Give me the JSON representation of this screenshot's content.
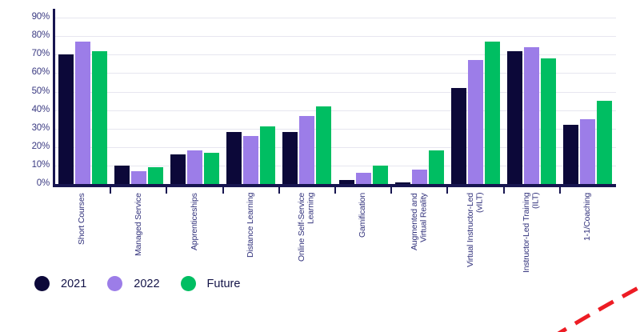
{
  "chart_data": {
    "type": "bar",
    "title": "",
    "xlabel": "",
    "ylabel": "",
    "ylim": [
      0,
      90
    ],
    "yticks": [
      "0%",
      "10%",
      "20%",
      "30%",
      "40%",
      "50%",
      "60%",
      "70%",
      "80%",
      "90%"
    ],
    "grid": true,
    "legend_position": "bottom-left",
    "categories": [
      "Short Courses",
      "Managed Service",
      "Apprenticeships",
      "Distance Learning",
      "Online Self-Service\nLearning",
      "Gamification",
      "Augmented and\nVirtual Reality",
      "Virtual Instructor-Led\n(vILT)",
      "Instructor-Led Training\n(ILT)",
      "1-1/Coaching"
    ],
    "series": [
      {
        "name": "2021",
        "color": "#0c0839",
        "values": [
          70,
          10,
          16,
          28,
          28,
          2,
          1,
          52,
          72,
          32
        ]
      },
      {
        "name": "2022",
        "color": "#9c7de8",
        "values": [
          77,
          7,
          18,
          26,
          37,
          6,
          8,
          67,
          74,
          35
        ]
      },
      {
        "name": "Future",
        "color": "#00be62",
        "values": [
          72,
          9,
          17,
          31,
          42,
          10,
          18,
          77,
          68,
          45
        ]
      }
    ]
  },
  "colors": {
    "axis": "#171550",
    "gridline": "#e7e6f0",
    "tick_label": "#3a3a82",
    "category_label": "#31317b",
    "legend_text": "#131347",
    "red_dash": "#ed1c24"
  }
}
